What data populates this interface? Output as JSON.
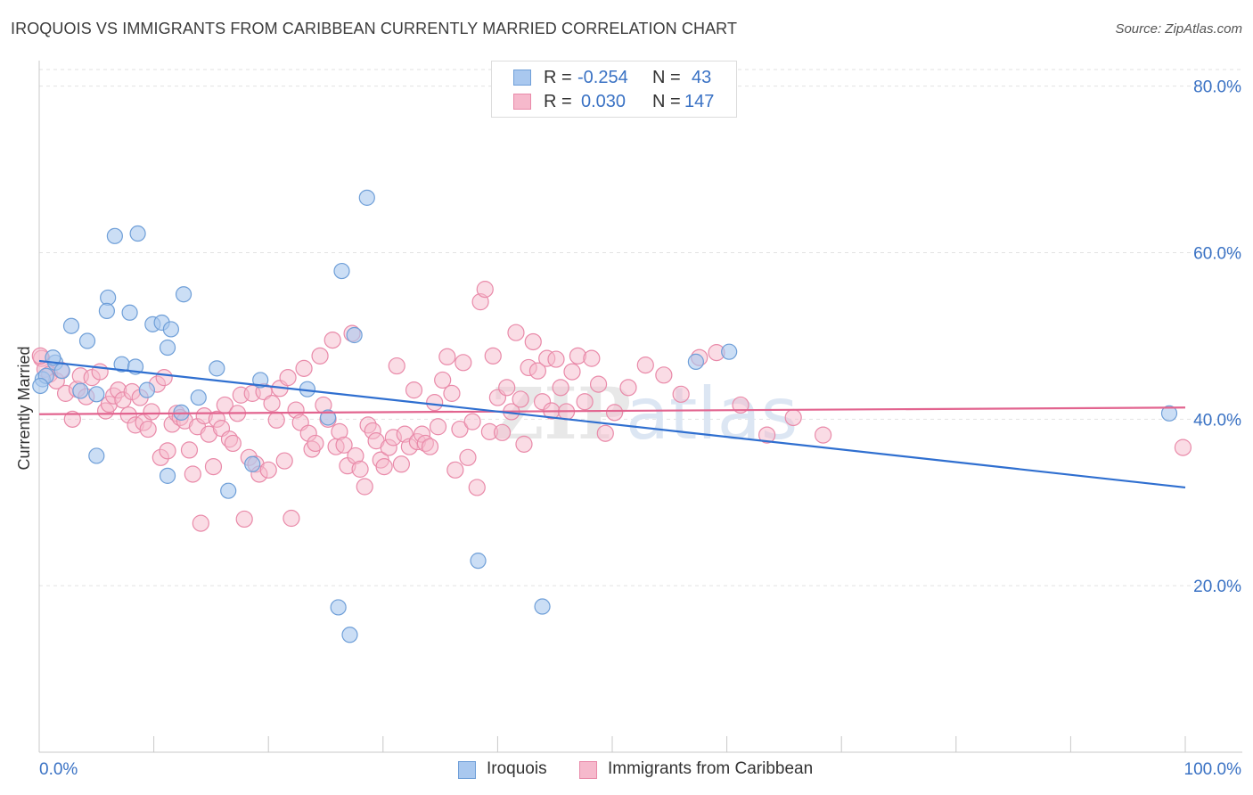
{
  "header": {
    "title": "IROQUOIS VS IMMIGRANTS FROM CARIBBEAN CURRENTLY MARRIED CORRELATION CHART",
    "source": "Source: ZipAtlas.com"
  },
  "legend": {
    "rows": [
      {
        "r_label": "R =",
        "r_value": "-0.254",
        "n_label": "N =",
        "n_value": "43"
      },
      {
        "r_label": "R =",
        "r_value": "0.030",
        "n_label": "N =",
        "n_value": "147"
      }
    ]
  },
  "watermark": {
    "zip": "ZIP",
    "atlas": "atlas"
  },
  "colors": {
    "blue_fill": "#a9c8ef",
    "blue_stroke": "#6f9fd8",
    "blue_line": "#2f6fd0",
    "pink_fill": "#f6b9cc",
    "pink_stroke": "#e98aa9",
    "pink_line": "#e2648f",
    "axis_text": "#3a72c4",
    "grid": "#e2e2e2"
  },
  "chart_data": {
    "type": "scatter",
    "title": "IROQUOIS VS IMMIGRANTS FROM CARIBBEAN CURRENTLY MARRIED CORRELATION CHART",
    "xlabel": "",
    "ylabel": "Currently Married",
    "xlim": [
      0,
      100
    ],
    "ylim": [
      0,
      82
    ],
    "x_tick_labels": [
      "0.0%",
      "100.0%"
    ],
    "y_ticks": [
      20,
      40,
      60,
      80
    ],
    "y_tick_labels": [
      "20.0%",
      "40.0%",
      "60.0%",
      "80.0%"
    ],
    "grid": "horizontal dashed",
    "legend_position": "top-center and bottom",
    "series": [
      {
        "name": "Iroquois",
        "color": "#a9c8ef",
        "r": -0.254,
        "n": 43,
        "trend": {
          "x": [
            0,
            100
          ],
          "y": [
            47.0,
            31.8
          ]
        },
        "points": [
          {
            "x": 0.3,
            "y": 44.8
          },
          {
            "x": 0.6,
            "y": 45.2
          },
          {
            "x": 1.4,
            "y": 46.8
          },
          {
            "x": 2.0,
            "y": 45.8
          },
          {
            "x": 1.2,
            "y": 47.4
          },
          {
            "x": 2.8,
            "y": 51.2
          },
          {
            "x": 4.2,
            "y": 49.4
          },
          {
            "x": 3.6,
            "y": 43.4
          },
          {
            "x": 5.0,
            "y": 43.0
          },
          {
            "x": 5.0,
            "y": 35.6
          },
          {
            "x": 6.0,
            "y": 54.6
          },
          {
            "x": 5.9,
            "y": 53.0
          },
          {
            "x": 6.6,
            "y": 62.0
          },
          {
            "x": 7.2,
            "y": 46.6
          },
          {
            "x": 7.9,
            "y": 52.8
          },
          {
            "x": 8.4,
            "y": 46.3
          },
          {
            "x": 8.6,
            "y": 62.3
          },
          {
            "x": 9.4,
            "y": 43.5
          },
          {
            "x": 9.9,
            "y": 51.4
          },
          {
            "x": 10.7,
            "y": 51.6
          },
          {
            "x": 11.2,
            "y": 48.6
          },
          {
            "x": 11.5,
            "y": 50.8
          },
          {
            "x": 11.2,
            "y": 33.2
          },
          {
            "x": 12.6,
            "y": 55.0
          },
          {
            "x": 12.4,
            "y": 40.8
          },
          {
            "x": 13.9,
            "y": 42.6
          },
          {
            "x": 15.5,
            "y": 46.1
          },
          {
            "x": 16.5,
            "y": 31.4
          },
          {
            "x": 18.6,
            "y": 34.6
          },
          {
            "x": 19.3,
            "y": 44.7
          },
          {
            "x": 23.4,
            "y": 43.6
          },
          {
            "x": 25.2,
            "y": 40.2
          },
          {
            "x": 26.1,
            "y": 17.4
          },
          {
            "x": 26.4,
            "y": 57.8
          },
          {
            "x": 27.1,
            "y": 14.1
          },
          {
            "x": 27.5,
            "y": 50.1
          },
          {
            "x": 28.6,
            "y": 66.6
          },
          {
            "x": 38.3,
            "y": 23.0
          },
          {
            "x": 43.9,
            "y": 17.5
          },
          {
            "x": 57.3,
            "y": 46.9
          },
          {
            "x": 60.2,
            "y": 48.1
          },
          {
            "x": 98.6,
            "y": 40.7
          },
          {
            "x": 0.1,
            "y": 44.0
          }
        ]
      },
      {
        "name": "Immigrants from Caribbean",
        "color": "#f6b9cc",
        "r": 0.03,
        "n": 147,
        "trend": {
          "x": [
            0,
            100
          ],
          "y": [
            40.6,
            41.4
          ]
        },
        "points": [
          {
            "x": 0.2,
            "y": 47.3
          },
          {
            "x": 0.5,
            "y": 46.0
          },
          {
            "x": 0.9,
            "y": 45.4
          },
          {
            "x": 1.5,
            "y": 44.6
          },
          {
            "x": 1.9,
            "y": 45.9
          },
          {
            "x": 2.3,
            "y": 43.1
          },
          {
            "x": 2.9,
            "y": 40.0
          },
          {
            "x": 3.3,
            "y": 43.6
          },
          {
            "x": 3.6,
            "y": 45.2
          },
          {
            "x": 4.1,
            "y": 42.7
          },
          {
            "x": 4.6,
            "y": 45.0
          },
          {
            "x": 5.3,
            "y": 45.7
          },
          {
            "x": 5.8,
            "y": 41.0
          },
          {
            "x": 6.1,
            "y": 41.8
          },
          {
            "x": 6.5,
            "y": 42.8
          },
          {
            "x": 6.9,
            "y": 43.5
          },
          {
            "x": 7.3,
            "y": 42.3
          },
          {
            "x": 7.8,
            "y": 40.5
          },
          {
            "x": 8.1,
            "y": 43.3
          },
          {
            "x": 8.4,
            "y": 39.3
          },
          {
            "x": 8.8,
            "y": 42.6
          },
          {
            "x": 9.1,
            "y": 39.6
          },
          {
            "x": 9.5,
            "y": 38.8
          },
          {
            "x": 9.8,
            "y": 40.9
          },
          {
            "x": 10.3,
            "y": 44.2
          },
          {
            "x": 10.6,
            "y": 35.4
          },
          {
            "x": 10.9,
            "y": 45.0
          },
          {
            "x": 11.2,
            "y": 36.2
          },
          {
            "x": 11.6,
            "y": 39.4
          },
          {
            "x": 12.0,
            "y": 40.7
          },
          {
            "x": 12.3,
            "y": 40.2
          },
          {
            "x": 12.7,
            "y": 39.8
          },
          {
            "x": 13.1,
            "y": 36.3
          },
          {
            "x": 13.4,
            "y": 33.4
          },
          {
            "x": 13.8,
            "y": 39.1
          },
          {
            "x": 14.1,
            "y": 27.5
          },
          {
            "x": 14.4,
            "y": 40.4
          },
          {
            "x": 14.8,
            "y": 38.2
          },
          {
            "x": 15.2,
            "y": 34.3
          },
          {
            "x": 15.5,
            "y": 40.0
          },
          {
            "x": 15.9,
            "y": 38.9
          },
          {
            "x": 16.2,
            "y": 41.7
          },
          {
            "x": 16.6,
            "y": 37.6
          },
          {
            "x": 16.9,
            "y": 37.1
          },
          {
            "x": 17.3,
            "y": 40.7
          },
          {
            "x": 17.6,
            "y": 42.9
          },
          {
            "x": 17.9,
            "y": 28.0
          },
          {
            "x": 18.3,
            "y": 35.4
          },
          {
            "x": 18.6,
            "y": 43.1
          },
          {
            "x": 18.9,
            "y": 34.6
          },
          {
            "x": 19.2,
            "y": 33.4
          },
          {
            "x": 19.6,
            "y": 43.3
          },
          {
            "x": 20.0,
            "y": 33.9
          },
          {
            "x": 20.3,
            "y": 41.9
          },
          {
            "x": 20.7,
            "y": 39.9
          },
          {
            "x": 21.0,
            "y": 43.7
          },
          {
            "x": 21.4,
            "y": 35.0
          },
          {
            "x": 21.7,
            "y": 45.0
          },
          {
            "x": 22.0,
            "y": 28.1
          },
          {
            "x": 22.4,
            "y": 41.1
          },
          {
            "x": 22.8,
            "y": 39.6
          },
          {
            "x": 23.1,
            "y": 46.1
          },
          {
            "x": 23.5,
            "y": 38.3
          },
          {
            "x": 23.8,
            "y": 36.4
          },
          {
            "x": 24.1,
            "y": 37.1
          },
          {
            "x": 24.5,
            "y": 47.6
          },
          {
            "x": 24.8,
            "y": 41.7
          },
          {
            "x": 25.2,
            "y": 40.0
          },
          {
            "x": 25.6,
            "y": 49.5
          },
          {
            "x": 25.9,
            "y": 36.7
          },
          {
            "x": 26.2,
            "y": 38.5
          },
          {
            "x": 26.6,
            "y": 36.9
          },
          {
            "x": 26.9,
            "y": 34.4
          },
          {
            "x": 27.3,
            "y": 50.3
          },
          {
            "x": 27.6,
            "y": 35.6
          },
          {
            "x": 28.0,
            "y": 34.0
          },
          {
            "x": 28.4,
            "y": 31.9
          },
          {
            "x": 28.7,
            "y": 39.3
          },
          {
            "x": 29.1,
            "y": 38.6
          },
          {
            "x": 29.4,
            "y": 37.4
          },
          {
            "x": 29.8,
            "y": 35.1
          },
          {
            "x": 30.1,
            "y": 34.3
          },
          {
            "x": 30.5,
            "y": 36.6
          },
          {
            "x": 30.9,
            "y": 37.8
          },
          {
            "x": 31.2,
            "y": 46.4
          },
          {
            "x": 31.6,
            "y": 34.6
          },
          {
            "x": 31.9,
            "y": 38.2
          },
          {
            "x": 32.3,
            "y": 36.7
          },
          {
            "x": 32.7,
            "y": 43.5
          },
          {
            "x": 33.0,
            "y": 37.3
          },
          {
            "x": 33.4,
            "y": 38.2
          },
          {
            "x": 33.7,
            "y": 37.1
          },
          {
            "x": 34.1,
            "y": 36.7
          },
          {
            "x": 34.5,
            "y": 42.0
          },
          {
            "x": 34.8,
            "y": 39.1
          },
          {
            "x": 35.2,
            "y": 44.7
          },
          {
            "x": 35.6,
            "y": 47.5
          },
          {
            "x": 36.0,
            "y": 43.1
          },
          {
            "x": 36.3,
            "y": 33.9
          },
          {
            "x": 36.7,
            "y": 38.8
          },
          {
            "x": 37.0,
            "y": 46.8
          },
          {
            "x": 37.4,
            "y": 35.4
          },
          {
            "x": 37.8,
            "y": 39.7
          },
          {
            "x": 38.2,
            "y": 31.8
          },
          {
            "x": 38.5,
            "y": 54.1
          },
          {
            "x": 38.9,
            "y": 55.6
          },
          {
            "x": 39.3,
            "y": 38.5
          },
          {
            "x": 39.6,
            "y": 47.6
          },
          {
            "x": 40.0,
            "y": 42.6
          },
          {
            "x": 40.4,
            "y": 38.4
          },
          {
            "x": 40.8,
            "y": 43.8
          },
          {
            "x": 41.2,
            "y": 40.9
          },
          {
            "x": 41.6,
            "y": 50.4
          },
          {
            "x": 42.0,
            "y": 42.4
          },
          {
            "x": 42.3,
            "y": 37.0
          },
          {
            "x": 42.7,
            "y": 46.2
          },
          {
            "x": 43.1,
            "y": 49.3
          },
          {
            "x": 43.5,
            "y": 45.8
          },
          {
            "x": 43.9,
            "y": 42.1
          },
          {
            "x": 44.3,
            "y": 47.3
          },
          {
            "x": 44.7,
            "y": 41.0
          },
          {
            "x": 45.1,
            "y": 47.2
          },
          {
            "x": 45.5,
            "y": 43.8
          },
          {
            "x": 46.0,
            "y": 40.9
          },
          {
            "x": 46.5,
            "y": 45.7
          },
          {
            "x": 47.0,
            "y": 47.6
          },
          {
            "x": 47.6,
            "y": 42.1
          },
          {
            "x": 48.2,
            "y": 47.3
          },
          {
            "x": 48.8,
            "y": 44.2
          },
          {
            "x": 49.4,
            "y": 38.3
          },
          {
            "x": 50.2,
            "y": 40.8
          },
          {
            "x": 51.4,
            "y": 43.8
          },
          {
            "x": 52.9,
            "y": 46.5
          },
          {
            "x": 54.5,
            "y": 45.3
          },
          {
            "x": 56.0,
            "y": 43.0
          },
          {
            "x": 57.6,
            "y": 47.4
          },
          {
            "x": 59.1,
            "y": 48.0
          },
          {
            "x": 61.2,
            "y": 41.7
          },
          {
            "x": 63.5,
            "y": 38.1
          },
          {
            "x": 65.8,
            "y": 40.2
          },
          {
            "x": 68.4,
            "y": 38.1
          },
          {
            "x": 99.8,
            "y": 36.6
          },
          {
            "x": 0.1,
            "y": 47.6
          }
        ]
      }
    ]
  },
  "bottom_legend": [
    "Iroquois",
    "Immigrants from Caribbean"
  ]
}
